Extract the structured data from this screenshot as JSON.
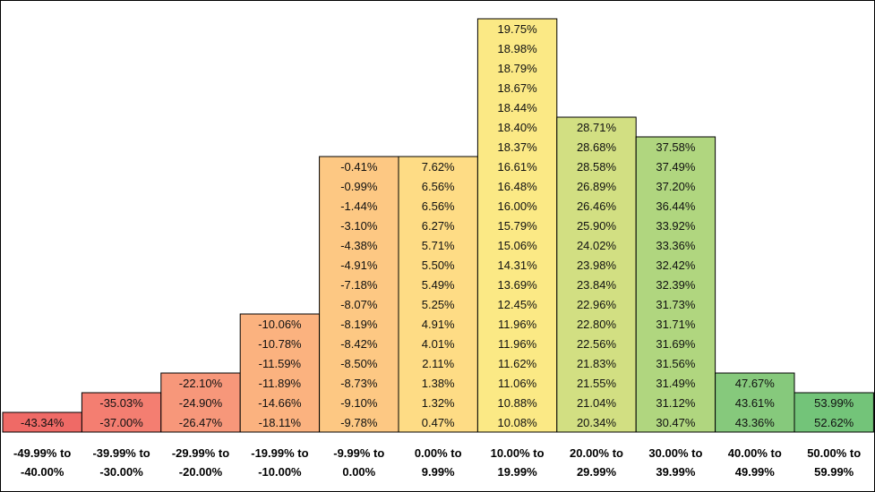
{
  "chart_data": {
    "type": "bar",
    "title": "",
    "xlabel": "",
    "ylabel": "",
    "grid": false,
    "legend": "none",
    "categories": [
      [
        "-49.99% to",
        "-40.00%"
      ],
      [
        "-39.99% to",
        "-30.00%"
      ],
      [
        "-29.99% to",
        "-20.00%"
      ],
      [
        "-19.99% to",
        "-10.00%"
      ],
      [
        "-9.99% to",
        "0.00%"
      ],
      [
        "0.00% to",
        "9.99%"
      ],
      [
        "10.00% to",
        "19.99%"
      ],
      [
        "20.00% to",
        "29.99%"
      ],
      [
        "30.00% to",
        "39.99%"
      ],
      [
        "40.00% to",
        "49.99%"
      ],
      [
        "50.00% to",
        "59.99%"
      ]
    ],
    "bins": [
      {
        "color": "#ef6a66",
        "values": [
          "-43.34%"
        ]
      },
      {
        "color": "#f47e71",
        "values": [
          "-35.03%",
          "-37.00%"
        ]
      },
      {
        "color": "#f7977a",
        "values": [
          "-22.10%",
          "-24.90%",
          "-26.47%"
        ]
      },
      {
        "color": "#fbb27f",
        "values": [
          "-10.06%",
          "-10.78%",
          "-11.59%",
          "-11.89%",
          "-14.66%",
          "-18.11%"
        ]
      },
      {
        "color": "#fdc883",
        "values": [
          "-0.41%",
          "-0.99%",
          "-1.44%",
          "-3.10%",
          "-4.38%",
          "-4.91%",
          "-7.18%",
          "-8.07%",
          "-8.19%",
          "-8.42%",
          "-8.50%",
          "-8.73%",
          "-9.10%",
          "-9.78%"
        ]
      },
      {
        "color": "#fedc85",
        "values": [
          "7.62%",
          "6.56%",
          "6.56%",
          "6.27%",
          "5.71%",
          "5.50%",
          "5.49%",
          "5.25%",
          "4.91%",
          "4.01%",
          "2.11%",
          "1.38%",
          "1.32%",
          "0.47%"
        ]
      },
      {
        "color": "#fbe985",
        "values": [
          "19.75%",
          "18.98%",
          "18.79%",
          "18.67%",
          "18.44%",
          "18.40%",
          "18.37%",
          "16.61%",
          "16.48%",
          "16.00%",
          "15.79%",
          "15.06%",
          "14.31%",
          "13.69%",
          "12.45%",
          "11.96%",
          "11.96%",
          "11.62%",
          "11.06%",
          "10.88%",
          "10.08%"
        ]
      },
      {
        "color": "#d2df82",
        "values": [
          "28.71%",
          "28.68%",
          "28.58%",
          "26.89%",
          "26.46%",
          "25.90%",
          "24.02%",
          "23.98%",
          "23.84%",
          "22.96%",
          "22.80%",
          "22.56%",
          "21.83%",
          "21.55%",
          "21.04%",
          "20.34%"
        ]
      },
      {
        "color": "#b0d67f",
        "values": [
          "37.58%",
          "37.49%",
          "37.20%",
          "36.44%",
          "33.92%",
          "33.36%",
          "32.42%",
          "32.39%",
          "31.73%",
          "31.71%",
          "31.69%",
          "31.56%",
          "31.49%",
          "31.12%",
          "30.47%"
        ]
      },
      {
        "color": "#86c97c",
        "values": [
          "47.67%",
          "43.61%",
          "43.36%"
        ]
      },
      {
        "color": "#73c479",
        "values": [
          "53.99%",
          "52.62%"
        ]
      }
    ]
  }
}
